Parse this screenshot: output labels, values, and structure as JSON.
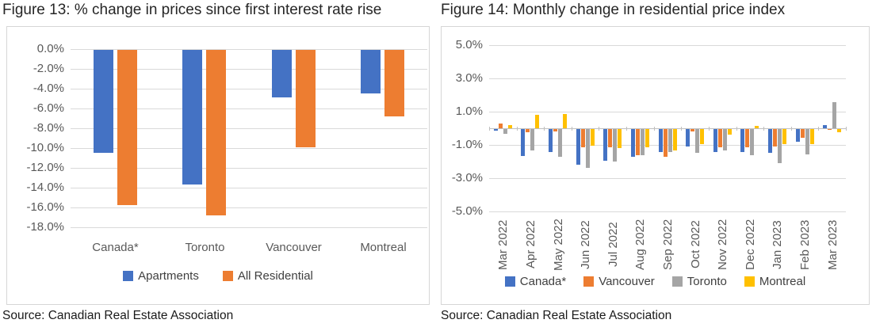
{
  "page": {
    "background": "#ffffff"
  },
  "chart_data": [
    {
      "id": "figure-13",
      "type": "bar",
      "title": "Figure 13: % change in prices since first interest rate rise",
      "source": "Source: Canadian Real Estate Association",
      "unit": "percent",
      "categories": [
        "Canada*",
        "Toronto",
        "Vancouver",
        "Montreal"
      ],
      "series": [
        {
          "name": "Apartments",
          "color": "#4472C4",
          "values": [
            -10.4,
            -13.6,
            -4.8,
            -4.4
          ]
        },
        {
          "name": "All Residential",
          "color": "#ED7D31",
          "values": [
            -15.7,
            -16.7,
            -9.8,
            -6.7
          ]
        }
      ],
      "ylim": [
        -18,
        0
      ],
      "yticks": [
        {
          "value": 0,
          "label": "0.0%"
        },
        {
          "value": -2,
          "label": "-2.0%"
        },
        {
          "value": -4,
          "label": "-4.0%"
        },
        {
          "value": -6,
          "label": "-6.0%"
        },
        {
          "value": -8,
          "label": "-8.0%"
        },
        {
          "value": -10,
          "label": "-10.0%"
        },
        {
          "value": -12,
          "label": "-12.0%"
        },
        {
          "value": -14,
          "label": "-14.0%"
        },
        {
          "value": -16,
          "label": "-16.0%"
        },
        {
          "value": -18,
          "label": "-18.0%"
        }
      ],
      "grid": true,
      "grid_color": "#D9D9D9",
      "axis_line_color": "#D9D9D9",
      "axis_text_color": "#595959",
      "legend_position": "bottom",
      "x_label_rotation": 0
    },
    {
      "id": "figure-14",
      "type": "bar",
      "title": "Figure 14: Monthly change in residential price index",
      "source": "Source: Canadian Real Estate Association",
      "unit": "percent",
      "categories": [
        "Mar 2022",
        "Apr 2022",
        "May 2022",
        "Jun 2022",
        "Jul 2022",
        "Aug 2022",
        "Sep 2022",
        "Oct 2022",
        "Nov 2022",
        "Dec 2022",
        "Jan 2023",
        "Feb 2023",
        "Mar 2023"
      ],
      "series": [
        {
          "name": "Canada*",
          "color": "#4472C4",
          "values": [
            -0.1,
            -1.6,
            -1.4,
            -2.15,
            -1.9,
            -1.65,
            -1.4,
            -1.05,
            -1.4,
            -1.4,
            -1.45,
            -0.75,
            0.2
          ]
        },
        {
          "name": "Vancouver",
          "color": "#ED7D31",
          "values": [
            0.3,
            -0.2,
            -0.15,
            -1.1,
            -1.1,
            -1.55,
            -1.65,
            -0.15,
            -1.1,
            -1.1,
            -1.05,
            -0.5,
            -0.05
          ]
        },
        {
          "name": "Toronto",
          "color": "#A5A5A5",
          "values": [
            -0.3,
            -1.3,
            -1.65,
            -2.35,
            -1.95,
            -1.55,
            -1.4,
            -1.45,
            -1.3,
            -1.55,
            -2.05,
            -1.5,
            1.55
          ]
        },
        {
          "name": "Montreal",
          "color": "#FFC000",
          "values": [
            0.2,
            0.8,
            0.85,
            -1.0,
            -1.15,
            -1.1,
            -1.3,
            -0.9,
            -0.35,
            0.15,
            -0.9,
            -0.9,
            -0.2
          ]
        }
      ],
      "ylim": [
        -5,
        5
      ],
      "yticks": [
        {
          "value": 5,
          "label": "5.0%"
        },
        {
          "value": 3,
          "label": "3.0%"
        },
        {
          "value": 1,
          "label": "1.0%"
        },
        {
          "value": -1,
          "label": "-1.0%"
        },
        {
          "value": -3,
          "label": "-3.0%"
        },
        {
          "value": -5,
          "label": "-5.0%"
        }
      ],
      "grid": true,
      "grid_color": "#D9D9D9",
      "axis_line_color": "#BFBFBF",
      "axis_text_color": "#595959",
      "legend_position": "bottom",
      "x_label_rotation": -90
    }
  ]
}
